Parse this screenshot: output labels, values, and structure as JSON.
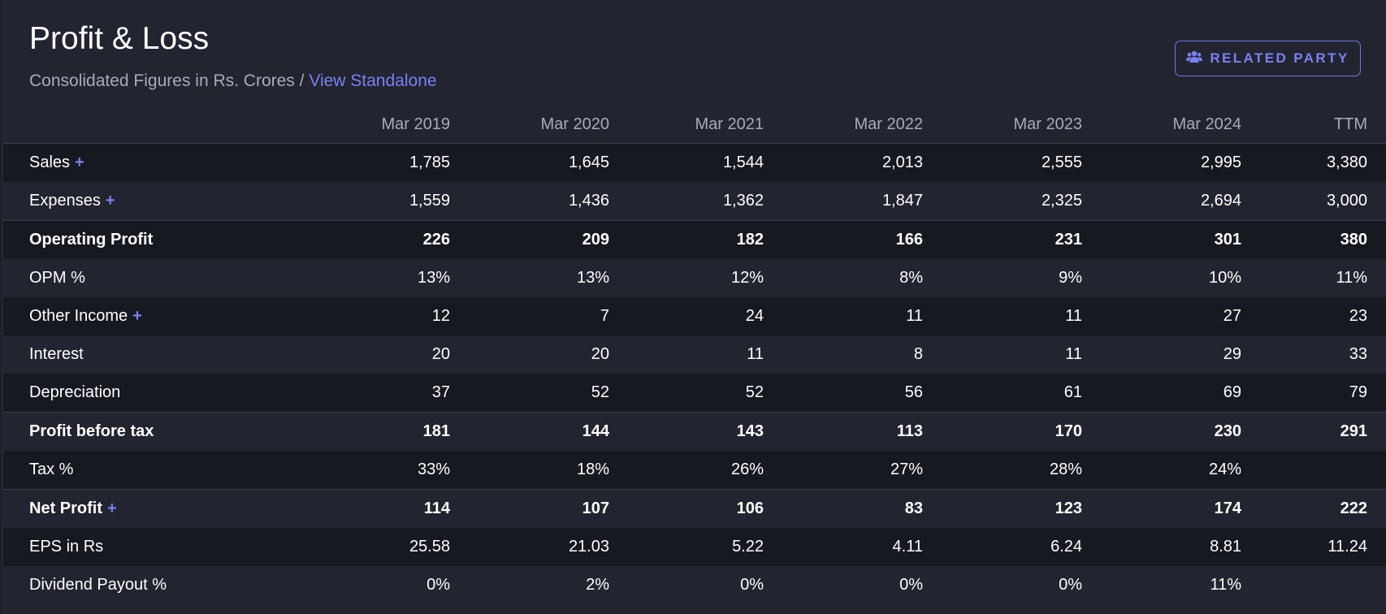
{
  "header": {
    "title": "Profit & Loss",
    "subtitle_prefix": "Consolidated Figures in Rs. Crores / ",
    "subtitle_link": "View Standalone",
    "related_party_label": "RELATED PARTY"
  },
  "table": {
    "columns": [
      "Mar 2019",
      "Mar 2020",
      "Mar 2021",
      "Mar 2022",
      "Mar 2023",
      "Mar 2024",
      "TTM"
    ],
    "rows": [
      {
        "label": "Sales",
        "plus": "+",
        "values": [
          "1,785",
          "1,645",
          "1,544",
          "2,013",
          "2,555",
          "2,995",
          "3,380"
        ]
      },
      {
        "label": "Expenses",
        "plus": "+",
        "values": [
          "1,559",
          "1,436",
          "1,362",
          "1,847",
          "2,325",
          "2,694",
          "3,000"
        ]
      },
      {
        "label": "Operating Profit",
        "plus": "",
        "values": [
          "226",
          "209",
          "182",
          "166",
          "231",
          "301",
          "380"
        ]
      },
      {
        "label": "OPM %",
        "plus": "",
        "values": [
          "13%",
          "13%",
          "12%",
          "8%",
          "9%",
          "10%",
          "11%"
        ]
      },
      {
        "label": "Other Income",
        "plus": "+",
        "values": [
          "12",
          "7",
          "24",
          "11",
          "11",
          "27",
          "23"
        ]
      },
      {
        "label": "Interest",
        "plus": "",
        "values": [
          "20",
          "20",
          "11",
          "8",
          "11",
          "29",
          "33"
        ]
      },
      {
        "label": "Depreciation",
        "plus": "",
        "values": [
          "37",
          "52",
          "52",
          "56",
          "61",
          "69",
          "79"
        ]
      },
      {
        "label": "Profit before tax",
        "plus": "",
        "values": [
          "181",
          "144",
          "143",
          "113",
          "170",
          "230",
          "291"
        ]
      },
      {
        "label": "Tax %",
        "plus": "",
        "values": [
          "33%",
          "18%",
          "26%",
          "27%",
          "28%",
          "24%",
          ""
        ]
      },
      {
        "label": "Net Profit",
        "plus": "+",
        "values": [
          "114",
          "107",
          "106",
          "83",
          "123",
          "174",
          "222"
        ]
      },
      {
        "label": "EPS in Rs",
        "plus": "",
        "values": [
          "25.58",
          "21.03",
          "5.22",
          "4.11",
          "6.24",
          "8.81",
          "11.24"
        ]
      },
      {
        "label": "Dividend Payout %",
        "plus": "",
        "values": [
          "0%",
          "2%",
          "0%",
          "0%",
          "0%",
          "11%",
          ""
        ]
      }
    ]
  },
  "colors": {
    "accent": "#7a80f5",
    "background": "#22252f",
    "row_dark": "#171921"
  },
  "icons": {
    "related_party": "users-icon"
  }
}
